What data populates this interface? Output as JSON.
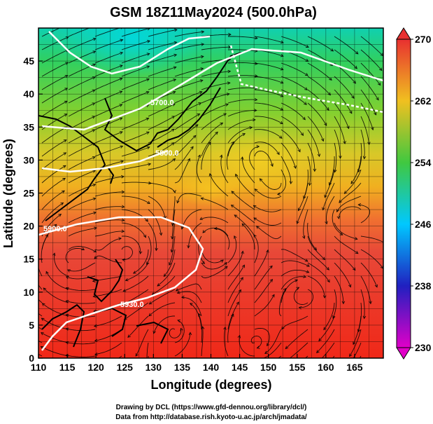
{
  "title": "GSM 18Z11May2024 (500.0hPa)",
  "x_axis": {
    "label": "Longitude (degrees)",
    "range": [
      110,
      170
    ],
    "ticks": [
      "110",
      "115",
      "120",
      "125",
      "130",
      "135",
      "140",
      "145",
      "150",
      "155",
      "160",
      "165"
    ]
  },
  "y_axis": {
    "label": "Latitude  (degrees)",
    "range": [
      0,
      50
    ],
    "ticks": [
      "0",
      "5",
      "10",
      "15",
      "20",
      "25",
      "30",
      "35",
      "40",
      "45"
    ]
  },
  "colorbar": {
    "labels": [
      "230",
      "238",
      "246",
      "254",
      "262",
      "270"
    ],
    "min": 230,
    "max": 270,
    "colors": [
      "#e000c8",
      "#2020c0",
      "#00c8ff",
      "#40c840",
      "#f0c020",
      "#e83030"
    ]
  },
  "contours": {
    "labels": [
      "5700.0",
      "5800.0",
      "5900.0",
      "5930.0"
    ]
  },
  "credits": [
    "Drawing by DCL (https://www.gfd-dennou.org/library/dcl/)",
    "Data from http://database.rish.kyoto-u.ac.jp/arch/jmadata/"
  ]
}
